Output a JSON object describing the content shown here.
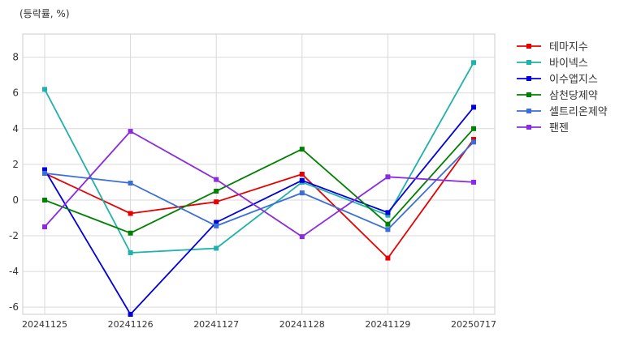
{
  "chart_data": {
    "type": "line",
    "unit_label": "(등락률, %)",
    "x": [
      "20241125",
      "20241126",
      "20241127",
      "20241128",
      "20241129",
      "20250717"
    ],
    "ylim": [
      -6.4,
      9.3
    ],
    "yticks": [
      -6,
      -4,
      -2,
      0,
      2,
      4,
      6,
      8
    ],
    "grid": true,
    "legend": "right, outside plot",
    "series": [
      {
        "name": "테마지수",
        "color": "#e60000",
        "values": [
          1.5,
          -0.75,
          -0.1,
          1.45,
          -3.25,
          3.4
        ]
      },
      {
        "name": "바이넥스",
        "color": "#20b2aa",
        "values": [
          6.2,
          -2.95,
          -2.7,
          1.0,
          -0.85,
          7.7
        ]
      },
      {
        "name": "이수앱지스",
        "color": "#0000dd",
        "values": [
          1.7,
          -6.4,
          -1.25,
          1.1,
          -0.7,
          5.2
        ]
      },
      {
        "name": "삼천당제약",
        "color": "#008000",
        "values": [
          0.0,
          -1.85,
          0.5,
          2.85,
          -1.35,
          4.0
        ]
      },
      {
        "name": "셀트리온제약",
        "color": "#3a6fd8",
        "values": [
          1.5,
          0.95,
          -1.45,
          0.4,
          -1.65,
          3.25
        ]
      },
      {
        "name": "팬젠",
        "color": "#8a2be2",
        "values": [
          -1.5,
          3.85,
          1.15,
          -2.05,
          1.3,
          1.0
        ]
      }
    ]
  }
}
